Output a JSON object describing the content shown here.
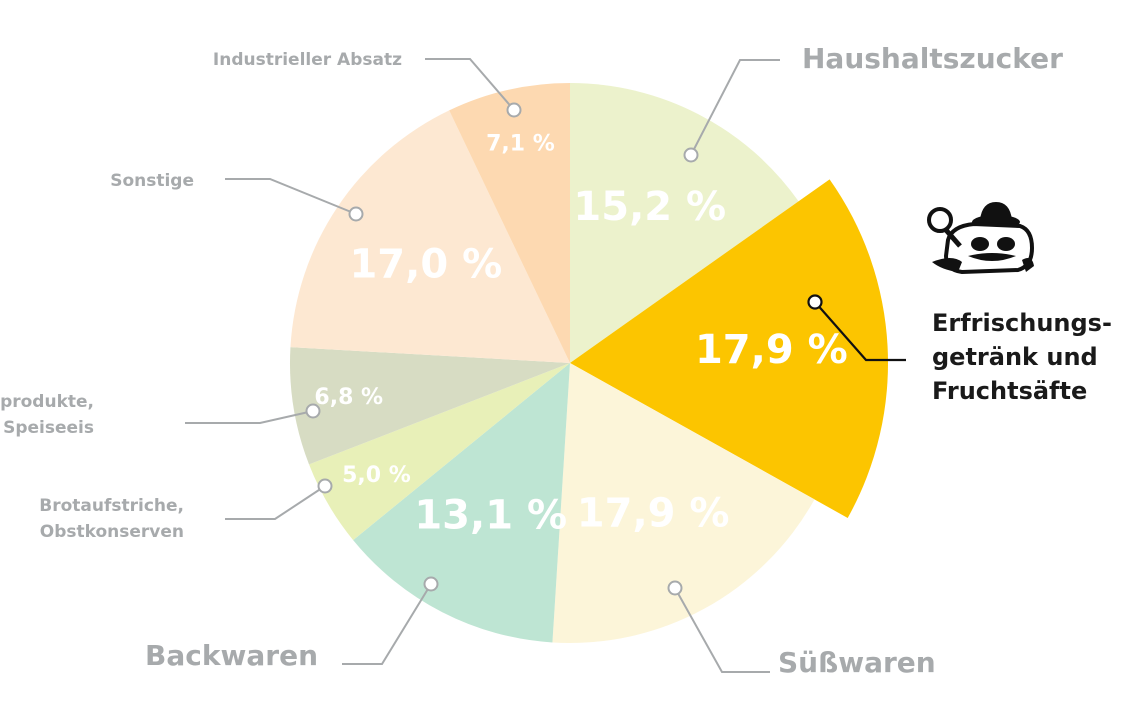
{
  "chart_data": {
    "type": "pie",
    "title": "",
    "start_angle_deg": 0,
    "slices": [
      {
        "label": "Haushaltszucker",
        "value": 15.2,
        "value_label": "15,2 %",
        "color": "#ecf2cc",
        "highlight": false
      },
      {
        "label": "Erfrischungs-getränk und Fruchtsäfte",
        "label_lines": [
          "Erfrischungs-",
          "getränk und",
          "Fruchtsäfte"
        ],
        "value": 17.9,
        "value_label": "17,9 %",
        "color": "#fcc500",
        "highlight": true
      },
      {
        "label": "Süßwaren",
        "value": 17.9,
        "value_label": "17,9 %",
        "color": "#fcf5d9",
        "highlight": false
      },
      {
        "label": "Backwaren",
        "value": 13.1,
        "value_label": "13,1 %",
        "color": "#bee5d3",
        "highlight": false
      },
      {
        "label": "Brotaufstriche, Obstkonserven",
        "label_lines": [
          "Brotaufstriche,",
          "Obstkonserven"
        ],
        "value": 5.0,
        "value_label": "5,0 %",
        "color": "#e8f0b8",
        "highlight": false
      },
      {
        "label": "Milchprodukte, Speiseeis",
        "label_lines": [
          "Milchprodukte,",
          "Speiseeis"
        ],
        "value": 6.8,
        "value_label": "6,8 %",
        "color": "#d7dcc3",
        "highlight": false
      },
      {
        "label": "Sonstige",
        "value": 17.0,
        "value_label": "17,0 %",
        "color": "#fde8d2",
        "highlight": false
      },
      {
        "label": "Industrieller Absatz",
        "value": 7.1,
        "value_label": "7,1 %",
        "color": "#fdd9b1",
        "highlight": false
      }
    ],
    "legend": "none",
    "labels": "external-with-leader-lines"
  },
  "icons": {
    "mascot": "detective-sugar-cube-icon"
  }
}
